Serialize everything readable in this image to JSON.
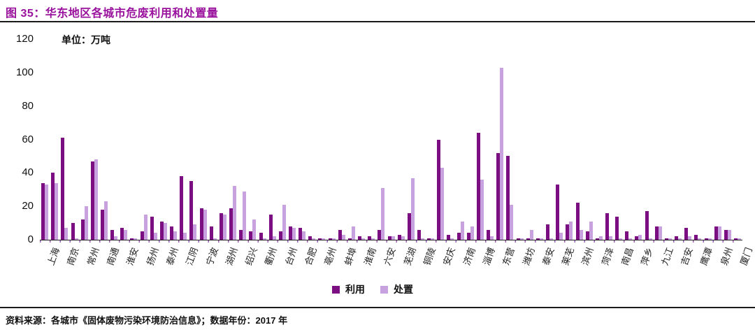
{
  "header": {
    "figure_label": "图 35：",
    "title": "华东地区各城市危废利用和处置量"
  },
  "unit_label": "单位：万吨",
  "y_axis": {
    "ticks": [
      120,
      100,
      80,
      60,
      40,
      20,
      0
    ]
  },
  "legend": [
    {
      "label": "利用",
      "color": "#7B0F82"
    },
    {
      "label": "处置",
      "color": "#C7A2DF"
    }
  ],
  "footer": {
    "source_prefix": "资料来源：",
    "source_body": "各城市《固体废物污染环境防治信息》；数据年份：",
    "source_year": "2017 年"
  },
  "colors": {
    "title": "#99119C",
    "bar_utilization": "#7B0F82",
    "bar_disposal": "#C7A2DF",
    "axis": "#1a1a1a"
  },
  "chart_data": {
    "type": "bar",
    "title": "华东地区各城市危废利用和处置量",
    "ylabel": "万吨",
    "ylim": [
      0,
      120
    ],
    "grid": false,
    "legend_position": "bottom-center",
    "note": "only every other bar group carries a city label in the original figure",
    "series": [
      {
        "name": "利用",
        "color": "#7B0F82"
      },
      {
        "name": "处置",
        "color": "#C7A2DF"
      }
    ],
    "groups": [
      {
        "name": "上海",
        "values": [
          34,
          33
        ]
      },
      {
        "name": "",
        "values": [
          40,
          34
        ]
      },
      {
        "name": "南京",
        "values": [
          61,
          7
        ]
      },
      {
        "name": "",
        "values": [
          10,
          1
        ]
      },
      {
        "name": "常州",
        "values": [
          12,
          20
        ]
      },
      {
        "name": "",
        "values": [
          47,
          48
        ]
      },
      {
        "name": "南通",
        "values": [
          18,
          23
        ]
      },
      {
        "name": "",
        "values": [
          6,
          2
        ]
      },
      {
        "name": "淮安",
        "values": [
          7,
          6
        ]
      },
      {
        "name": "",
        "values": [
          1,
          1
        ]
      },
      {
        "name": "扬州",
        "values": [
          5,
          15
        ]
      },
      {
        "name": "",
        "values": [
          14,
          4
        ]
      },
      {
        "name": "泰州",
        "values": [
          11,
          10
        ]
      },
      {
        "name": "",
        "values": [
          8,
          5
        ]
      },
      {
        "name": "江阴",
        "values": [
          38,
          4
        ]
      },
      {
        "name": "",
        "values": [
          35,
          9
        ]
      },
      {
        "name": "宁波",
        "values": [
          19,
          18
        ]
      },
      {
        "name": "",
        "values": [
          8,
          1
        ]
      },
      {
        "name": "湖州",
        "values": [
          16,
          15
        ]
      },
      {
        "name": "",
        "values": [
          19,
          32
        ]
      },
      {
        "name": "绍兴",
        "values": [
          6,
          29
        ]
      },
      {
        "name": "",
        "values": [
          5,
          12
        ]
      },
      {
        "name": "衢州",
        "values": [
          4,
          1
        ]
      },
      {
        "name": "",
        "values": [
          15,
          2
        ]
      },
      {
        "name": "台州",
        "values": [
          5,
          21
        ]
      },
      {
        "name": "",
        "values": [
          8,
          7
        ]
      },
      {
        "name": "合肥",
        "values": [
          7,
          5
        ]
      },
      {
        "name": "",
        "values": [
          2,
          1
        ]
      },
      {
        "name": "亳州",
        "values": [
          1,
          1
        ]
      },
      {
        "name": "",
        "values": [
          1,
          1
        ]
      },
      {
        "name": "蚌埠",
        "values": [
          6,
          3
        ]
      },
      {
        "name": "",
        "values": [
          1,
          8
        ]
      },
      {
        "name": "淮南",
        "values": [
          2,
          1
        ]
      },
      {
        "name": "",
        "values": [
          2,
          1
        ]
      },
      {
        "name": "六安",
        "values": [
          6,
          31
        ]
      },
      {
        "name": "",
        "values": [
          2,
          2
        ]
      },
      {
        "name": "芜湖",
        "values": [
          3,
          2
        ]
      },
      {
        "name": "",
        "values": [
          16,
          37
        ]
      },
      {
        "name": "铜陵",
        "values": [
          6,
          1
        ]
      },
      {
        "name": "",
        "values": [
          1,
          1
        ]
      },
      {
        "name": "安庆",
        "values": [
          60,
          43
        ]
      },
      {
        "name": "",
        "values": [
          3,
          1
        ]
      },
      {
        "name": "济南",
        "values": [
          4,
          11
        ]
      },
      {
        "name": "",
        "values": [
          4,
          8
        ]
      },
      {
        "name": "淄博",
        "values": [
          64,
          36
        ]
      },
      {
        "name": "",
        "values": [
          6,
          2
        ]
      },
      {
        "name": "东营",
        "values": [
          52,
          103
        ]
      },
      {
        "name": "",
        "values": [
          50,
          21
        ]
      },
      {
        "name": "潍坊",
        "values": [
          1,
          1
        ]
      },
      {
        "name": "",
        "values": [
          1,
          6
        ]
      },
      {
        "name": "泰安",
        "values": [
          1,
          1
        ]
      },
      {
        "name": "",
        "values": [
          9,
          1
        ]
      },
      {
        "name": "莱芜",
        "values": [
          33,
          4
        ]
      },
      {
        "name": "",
        "values": [
          9,
          11
        ]
      },
      {
        "name": "滨州",
        "values": [
          22,
          6
        ]
      },
      {
        "name": "",
        "values": [
          5,
          11
        ]
      },
      {
        "name": "菏泽",
        "values": [
          1,
          2
        ]
      },
      {
        "name": "",
        "values": [
          16,
          2
        ]
      },
      {
        "name": "南昌",
        "values": [
          14,
          1
        ]
      },
      {
        "name": "",
        "values": [
          5,
          1
        ]
      },
      {
        "name": "萍乡",
        "values": [
          2,
          3
        ]
      },
      {
        "name": "",
        "values": [
          17,
          1
        ]
      },
      {
        "name": "九江",
        "values": [
          8,
          8
        ]
      },
      {
        "name": "",
        "values": [
          1,
          1
        ]
      },
      {
        "name": "吉安",
        "values": [
          2,
          1
        ]
      },
      {
        "name": "",
        "values": [
          7,
          2
        ]
      },
      {
        "name": "鹰潭",
        "values": [
          3,
          1
        ]
      },
      {
        "name": "",
        "values": [
          1,
          1
        ]
      },
      {
        "name": "泉州",
        "values": [
          8,
          8
        ]
      },
      {
        "name": "",
        "values": [
          6,
          6
        ]
      },
      {
        "name": "厦门",
        "values": [
          1,
          1
        ]
      }
    ]
  }
}
